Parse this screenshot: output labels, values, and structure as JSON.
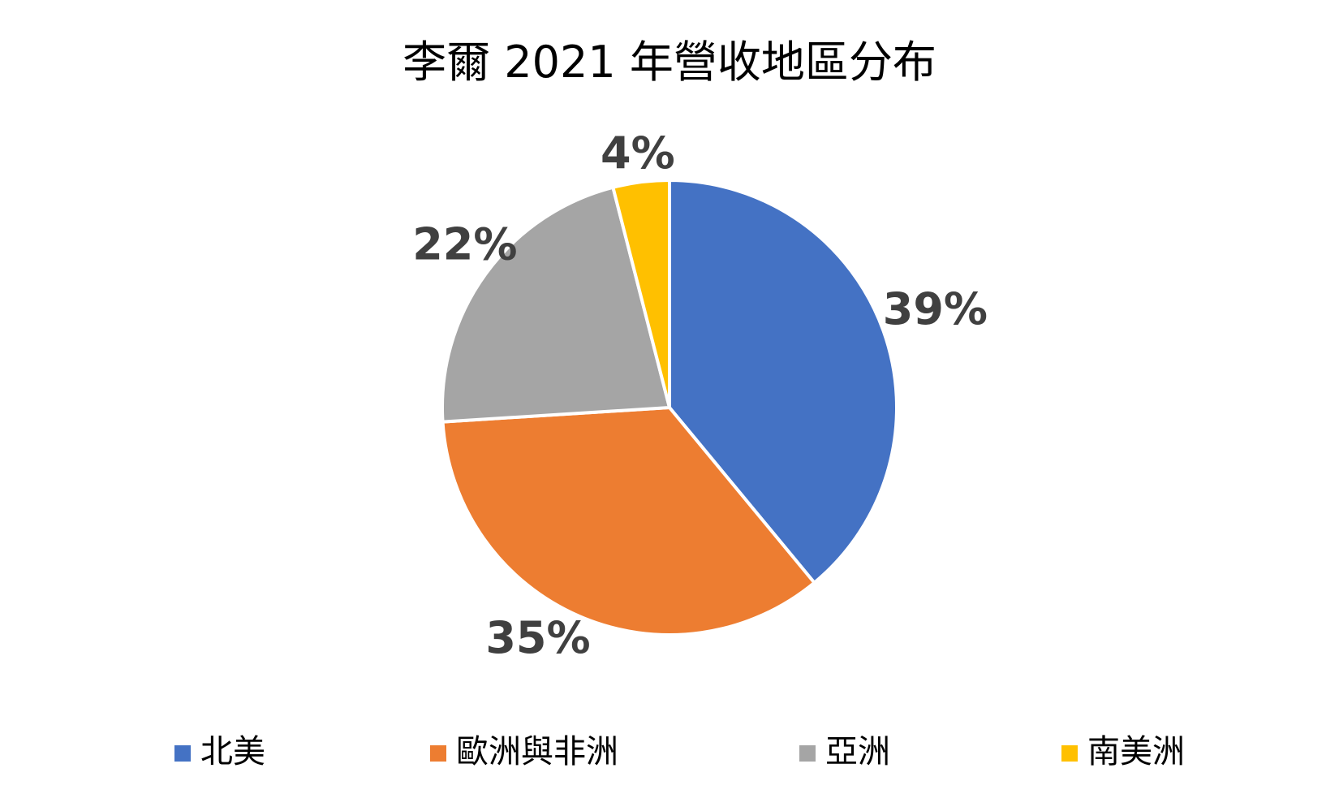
{
  "chart_data": {
    "type": "pie",
    "title": "李爾 2021 年營收地區分布",
    "categories": [
      "北美",
      "歐洲與非洲",
      "亞洲",
      "南美洲"
    ],
    "values": [
      39,
      35,
      22,
      4
    ],
    "labels": [
      "39%",
      "35%",
      "22%",
      "4%"
    ],
    "colors": [
      "#4472C4",
      "#ED7D31",
      "#A5A5A5",
      "#FFC000"
    ],
    "label_color": "#404040",
    "legend_position": "bottom"
  }
}
